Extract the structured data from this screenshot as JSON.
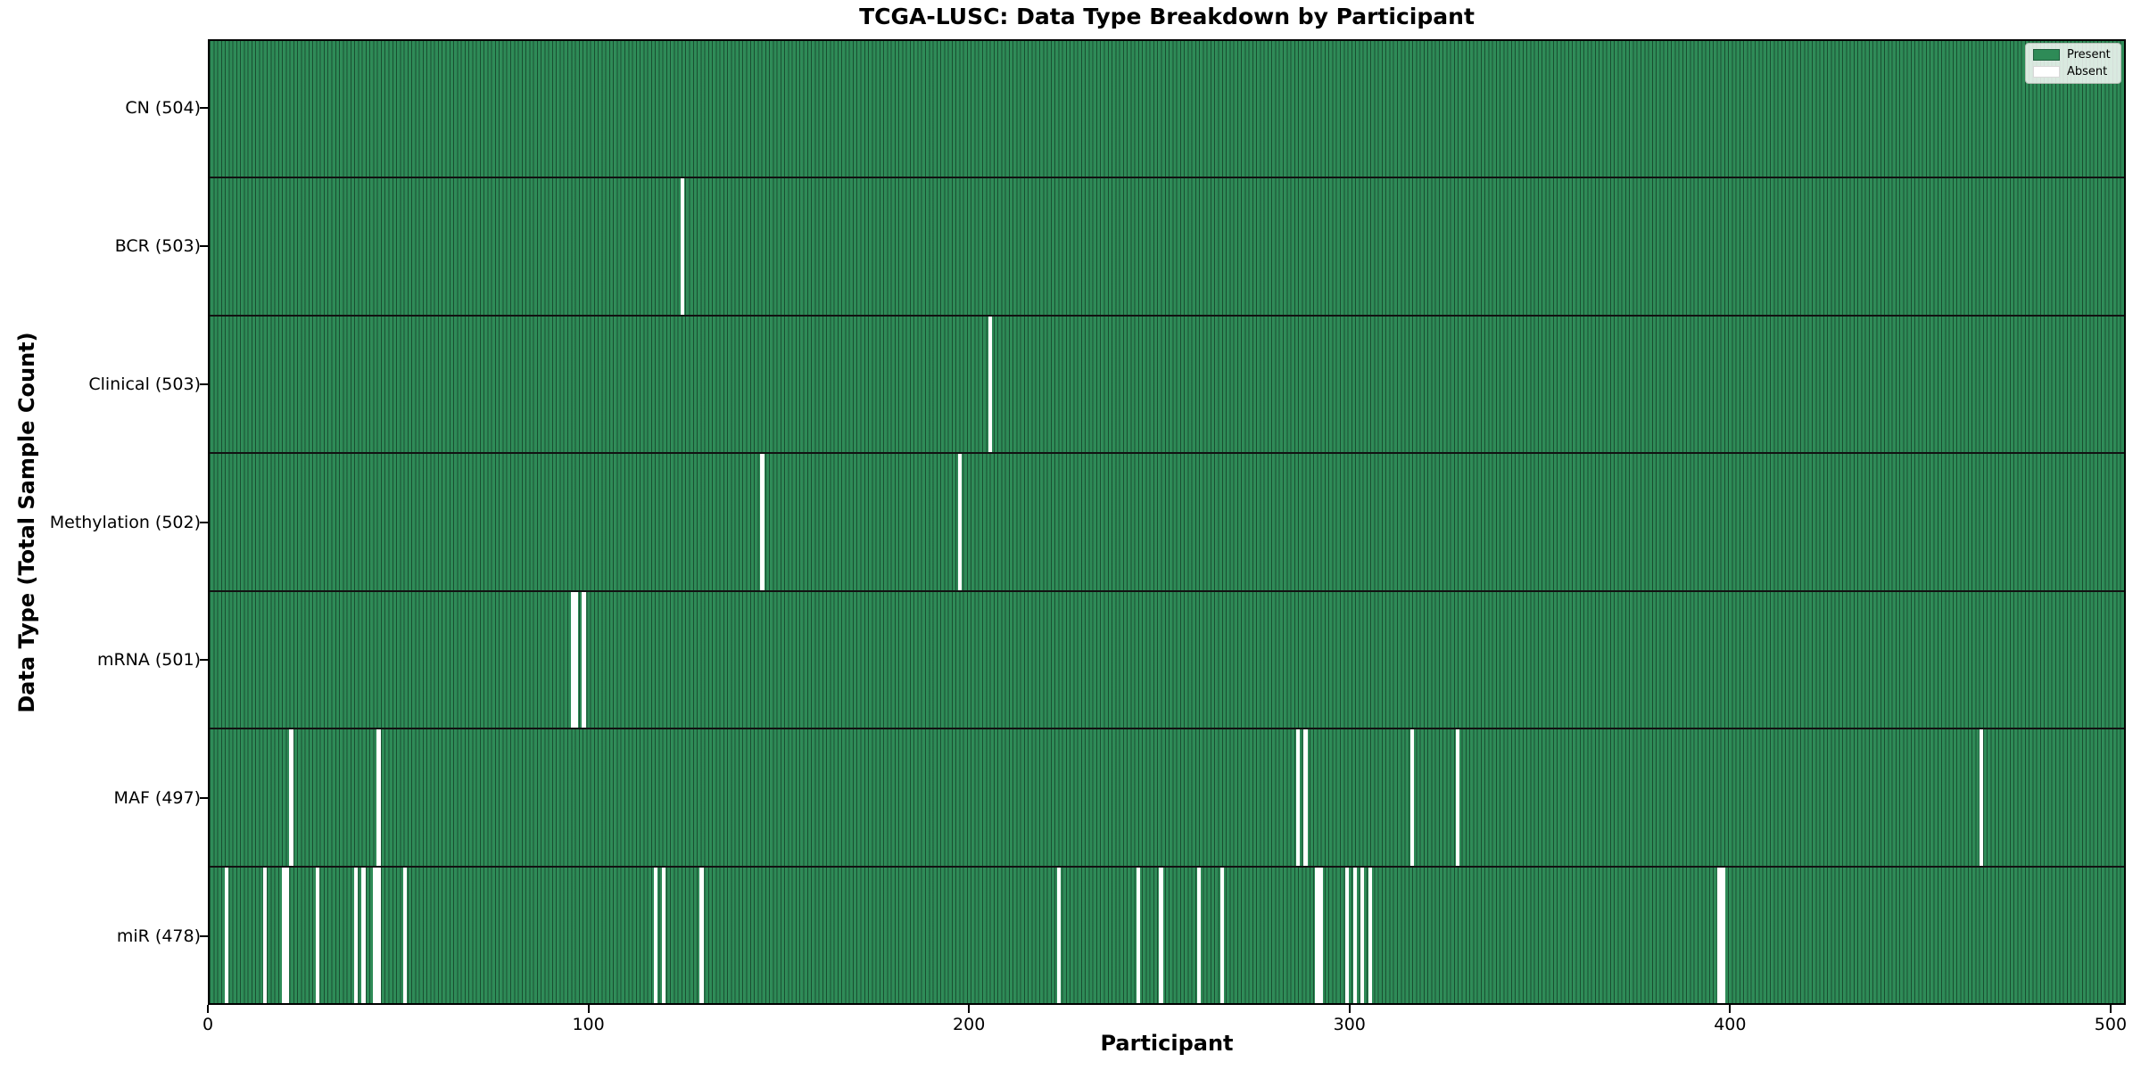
{
  "chart_data": {
    "type": "heatmap",
    "title": "TCGA-LUSC: Data Type Breakdown by Participant",
    "xlabel": "Participant",
    "ylabel": "Data Type (Total Sample Count)",
    "total_participants": 504,
    "xlim": [
      0,
      504
    ],
    "x_ticks": [
      0,
      100,
      200,
      300,
      400,
      500
    ],
    "grid": false,
    "colors": {
      "present": "#2e8b57",
      "absent": "#ffffff",
      "bar_edge": "#14361f"
    },
    "legend": {
      "position": "upper right",
      "entries": [
        {
          "label": "Present",
          "color": "#2e8b57"
        },
        {
          "label": "Absent",
          "color": "#ffffff"
        }
      ]
    },
    "rows": [
      {
        "data_type": "CN",
        "label": "CN (504)",
        "present_count": 504,
        "missing_participants": []
      },
      {
        "data_type": "BCR",
        "label": "BCR (503)",
        "present_count": 503,
        "missing_participants": [
          124
        ]
      },
      {
        "data_type": "Clinical",
        "label": "Clinical (503)",
        "present_count": 503,
        "missing_participants": [
          205
        ]
      },
      {
        "data_type": "Methylation",
        "label": "Methylation (502)",
        "present_count": 502,
        "missing_participants": [
          145,
          197
        ]
      },
      {
        "data_type": "mRNA",
        "label": "mRNA (501)",
        "present_count": 501,
        "missing_participants": [
          95,
          96,
          98
        ]
      },
      {
        "data_type": "MAF",
        "label": "MAF (497)",
        "present_count": 497,
        "missing_participants": [
          21,
          44,
          286,
          288,
          316,
          328,
          466
        ]
      },
      {
        "data_type": "miR",
        "label": "miR (478)",
        "present_count": 478,
        "missing_participants": [
          4,
          14,
          19,
          20,
          28,
          38,
          40,
          43,
          44,
          51,
          117,
          119,
          129,
          223,
          244,
          250,
          260,
          266,
          291,
          292,
          299,
          301,
          303,
          305,
          397,
          398
        ]
      }
    ]
  }
}
